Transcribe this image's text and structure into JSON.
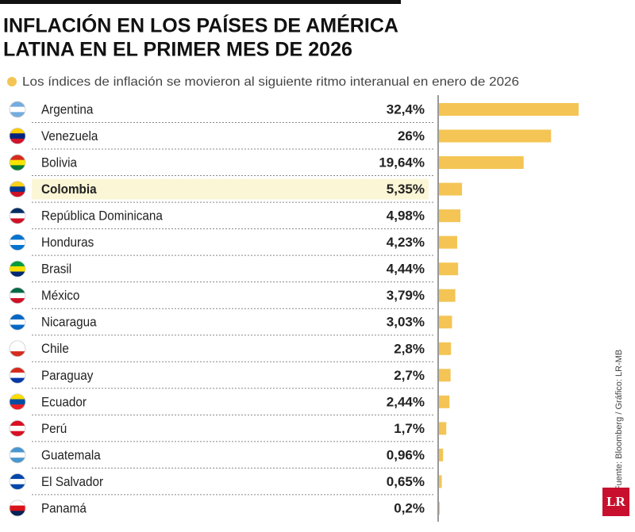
{
  "chart_data": {
    "type": "hbar",
    "title": "INFLACIÓN EN LOS PAÍSES DE AMÉRICA",
    "title_line2": "LATINA EN EL PRIMER MES DE 2026",
    "subtitle": "Los índices de inflación se movieron al siguiente ritmo interanual en enero de 2026",
    "categories": [
      "Argentina",
      "Venezuela",
      "Bolivia",
      "Colombia",
      "República Dominicana",
      "Honduras",
      "Brasil",
      "México",
      "Nicaragua",
      "Chile",
      "Paraguay",
      "Ecuador",
      "Perú",
      "Guatemala",
      "El Salvador",
      "Panamá"
    ],
    "values": [
      32.4,
      26,
      19.64,
      5.35,
      4.98,
      4.23,
      4.44,
      3.79,
      3.03,
      2.8,
      2.7,
      2.44,
      1.7,
      0.96,
      0.65,
      0.2
    ],
    "value_labels": [
      "32,4%",
      "26%",
      "19,64%",
      "5,35%",
      "4,98%",
      "4,23%",
      "4,44%",
      "3,79%",
      "3,03%",
      "2,8%",
      "2,7%",
      "2,44%",
      "1,7%",
      "0,96%",
      "0,65%",
      "0,2%"
    ],
    "color": "#f4c554",
    "highlight": "Colombia",
    "source": "Fuente: Bloomberg / Gráfico: LR-MB",
    "logo": "LR"
  }
}
